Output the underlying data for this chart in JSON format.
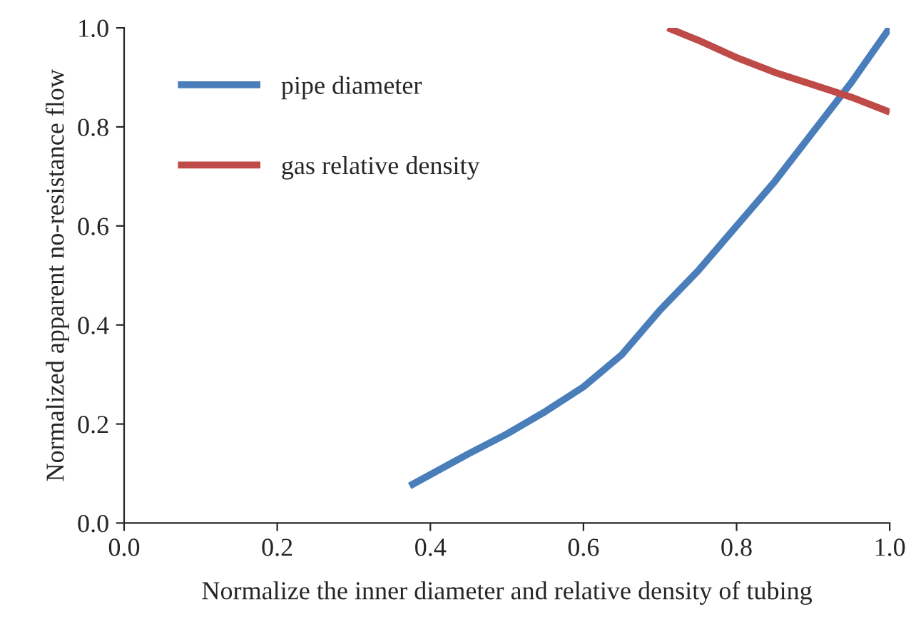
{
  "chart_data": {
    "type": "line",
    "xlabel": "Normalize the inner diameter and relative density of tubing",
    "ylabel": "Normalized apparent no-resistance flow",
    "series": [
      {
        "name": "pipe diameter",
        "color": "#4a7ebb",
        "x": [
          0.373,
          0.45,
          0.5,
          0.55,
          0.6,
          0.65,
          0.7,
          0.75,
          0.8,
          0.85,
          0.9,
          0.95,
          1.0
        ],
        "values": [
          0.075,
          0.14,
          0.18,
          0.225,
          0.275,
          0.34,
          0.43,
          0.51,
          0.6,
          0.69,
          0.79,
          0.89,
          1.0
        ]
      },
      {
        "name": "gas relative density",
        "color": "#be4b48",
        "x": [
          0.71,
          0.75,
          0.8,
          0.85,
          0.9,
          0.95,
          1.0
        ],
        "values": [
          1.0,
          0.975,
          0.94,
          0.91,
          0.885,
          0.86,
          0.83
        ]
      }
    ],
    "xlim": [
      0,
      1
    ],
    "ylim": [
      0,
      1
    ],
    "xticks": [
      {
        "value": 0,
        "label": "0.0"
      },
      {
        "value": 0.2,
        "label": "0.2"
      },
      {
        "value": 0.4,
        "label": "0.4"
      },
      {
        "value": 0.6,
        "label": "0.6"
      },
      {
        "value": 0.8,
        "label": "0.8"
      },
      {
        "value": 1,
        "label": "1.0"
      }
    ],
    "yticks": [
      {
        "value": 0,
        "label": "0.0"
      },
      {
        "value": 0.2,
        "label": "0.2"
      },
      {
        "value": 0.4,
        "label": "0.4"
      },
      {
        "value": 0.6,
        "label": "0.6"
      },
      {
        "value": 0.8,
        "label": "0.8"
      },
      {
        "value": 1,
        "label": "1.0"
      }
    ],
    "grid": false,
    "legend": "top left",
    "line_style": "solid",
    "marker": "none"
  }
}
